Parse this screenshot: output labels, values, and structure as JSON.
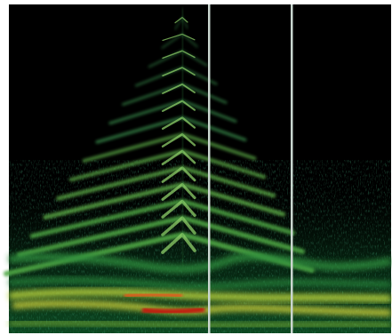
{
  "image": {
    "subject": "spectrogram",
    "colormap": [
      "#000000",
      "#05240f",
      "#0d4a22",
      "#1f7a3a",
      "#3fa34d",
      "#9ccc3c",
      "#e8e23a",
      "#e56a1e",
      "#c41a10"
    ],
    "background_color": "#000000",
    "frame_color": "#ffffff",
    "marker_color": "#c9d6cf",
    "markers": [
      {
        "name": "time-marker-1"
      },
      {
        "name": "time-marker-2"
      }
    ]
  }
}
